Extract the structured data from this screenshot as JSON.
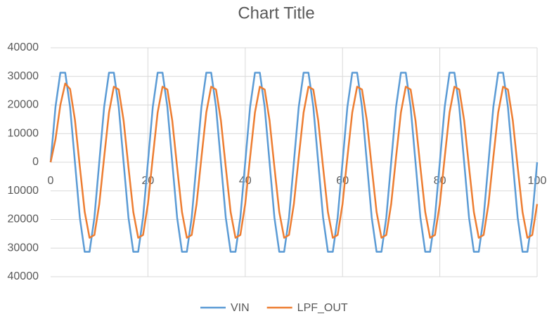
{
  "chart_data": {
    "type": "line",
    "title": "Chart Title",
    "x": [
      0,
      1,
      2,
      3,
      4,
      5,
      6,
      7,
      8,
      9,
      10,
      11,
      12,
      13,
      14,
      15,
      16,
      17,
      18,
      19,
      20,
      21,
      22,
      23,
      24,
      25,
      26,
      27,
      28,
      29,
      30,
      31,
      32,
      33,
      34,
      35,
      36,
      37,
      38,
      39,
      40,
      41,
      42,
      43,
      44,
      45,
      46,
      47,
      48,
      49,
      50,
      51,
      52,
      53,
      54,
      55,
      56,
      57,
      58,
      59,
      60,
      61,
      62,
      63,
      64,
      65,
      66,
      67,
      68,
      69,
      70,
      71,
      72,
      73,
      74,
      75,
      76,
      77,
      78,
      79,
      80,
      81,
      82,
      83,
      84,
      85,
      86,
      87,
      88,
      89,
      90,
      91,
      92,
      93,
      94,
      95,
      96,
      97,
      98,
      99,
      100
    ],
    "series": [
      {
        "name": "VIN",
        "color": "#5b9bd5",
        "values": [
          0,
          19300,
          31300,
          31300,
          19300,
          0,
          -19300,
          -31300,
          -31300,
          -19300,
          0,
          19300,
          31300,
          31300,
          19300,
          0,
          -19300,
          -31300,
          -31300,
          -19300,
          0,
          19300,
          31300,
          31300,
          19300,
          0,
          -19300,
          -31300,
          -31300,
          -19300,
          0,
          19300,
          31300,
          31300,
          19300,
          0,
          -19300,
          -31300,
          -31300,
          -19300,
          0,
          19300,
          31300,
          31300,
          19300,
          0,
          -19300,
          -31300,
          -31300,
          -19300,
          0,
          19300,
          31300,
          31300,
          19300,
          0,
          -19300,
          -31300,
          -31300,
          -19300,
          0,
          19300,
          31300,
          31300,
          19300,
          0,
          -19300,
          -31300,
          -31300,
          -19300,
          0,
          19300,
          31300,
          31300,
          19300,
          0,
          -19300,
          -31300,
          -31300,
          -19300,
          0,
          19300,
          31300,
          31300,
          19300,
          0,
          -19300,
          -31300,
          -31300,
          -19300,
          0,
          19300,
          31300,
          31300,
          19300,
          0,
          -19300,
          -31300,
          -31300,
          -19300,
          0
        ]
      },
      {
        "name": "LPF_OUT",
        "color": "#ed7d31",
        "values": [
          0,
          8000,
          20000,
          27500,
          25600,
          14800,
          -1500,
          -17300,
          -26400,
          -25400,
          -14600,
          1700,
          17400,
          26400,
          25400,
          14600,
          -1700,
          -17400,
          -26400,
          -25400,
          -14600,
          1700,
          17400,
          26400,
          25400,
          14600,
          -1700,
          -17400,
          -26400,
          -25400,
          -14600,
          1700,
          17400,
          26400,
          25400,
          14600,
          -1700,
          -17400,
          -26400,
          -25400,
          -14600,
          1700,
          17400,
          26400,
          25400,
          14600,
          -1700,
          -17400,
          -26400,
          -25400,
          -14600,
          1700,
          17400,
          26400,
          25400,
          14600,
          -1700,
          -17400,
          -26400,
          -25400,
          -14600,
          1700,
          17400,
          26400,
          25400,
          14600,
          -1700,
          -17400,
          -26400,
          -25400,
          -14600,
          1700,
          17400,
          26400,
          25400,
          14600,
          -1700,
          -17400,
          -26400,
          -25400,
          -14600,
          1700,
          17400,
          26400,
          25400,
          14600,
          -1700,
          -17400,
          -26400,
          -25400,
          -14600,
          1700,
          17400,
          26400,
          25400,
          14600,
          -1700,
          -17400,
          -26400,
          -25400,
          -14600
        ]
      }
    ],
    "xlim": [
      0,
      100
    ],
    "xticks": [
      0,
      20,
      40,
      60,
      80,
      100
    ],
    "ylim": [
      -40000,
      40000
    ],
    "yticks": [
      {
        "value": -40000,
        "label": "40000"
      },
      {
        "value": -30000,
        "label": "30000"
      },
      {
        "value": -20000,
        "label": "20000"
      },
      {
        "value": -10000,
        "label": "10000"
      },
      0,
      10000,
      20000,
      30000,
      40000
    ],
    "grid": true,
    "legend": "bottom"
  }
}
